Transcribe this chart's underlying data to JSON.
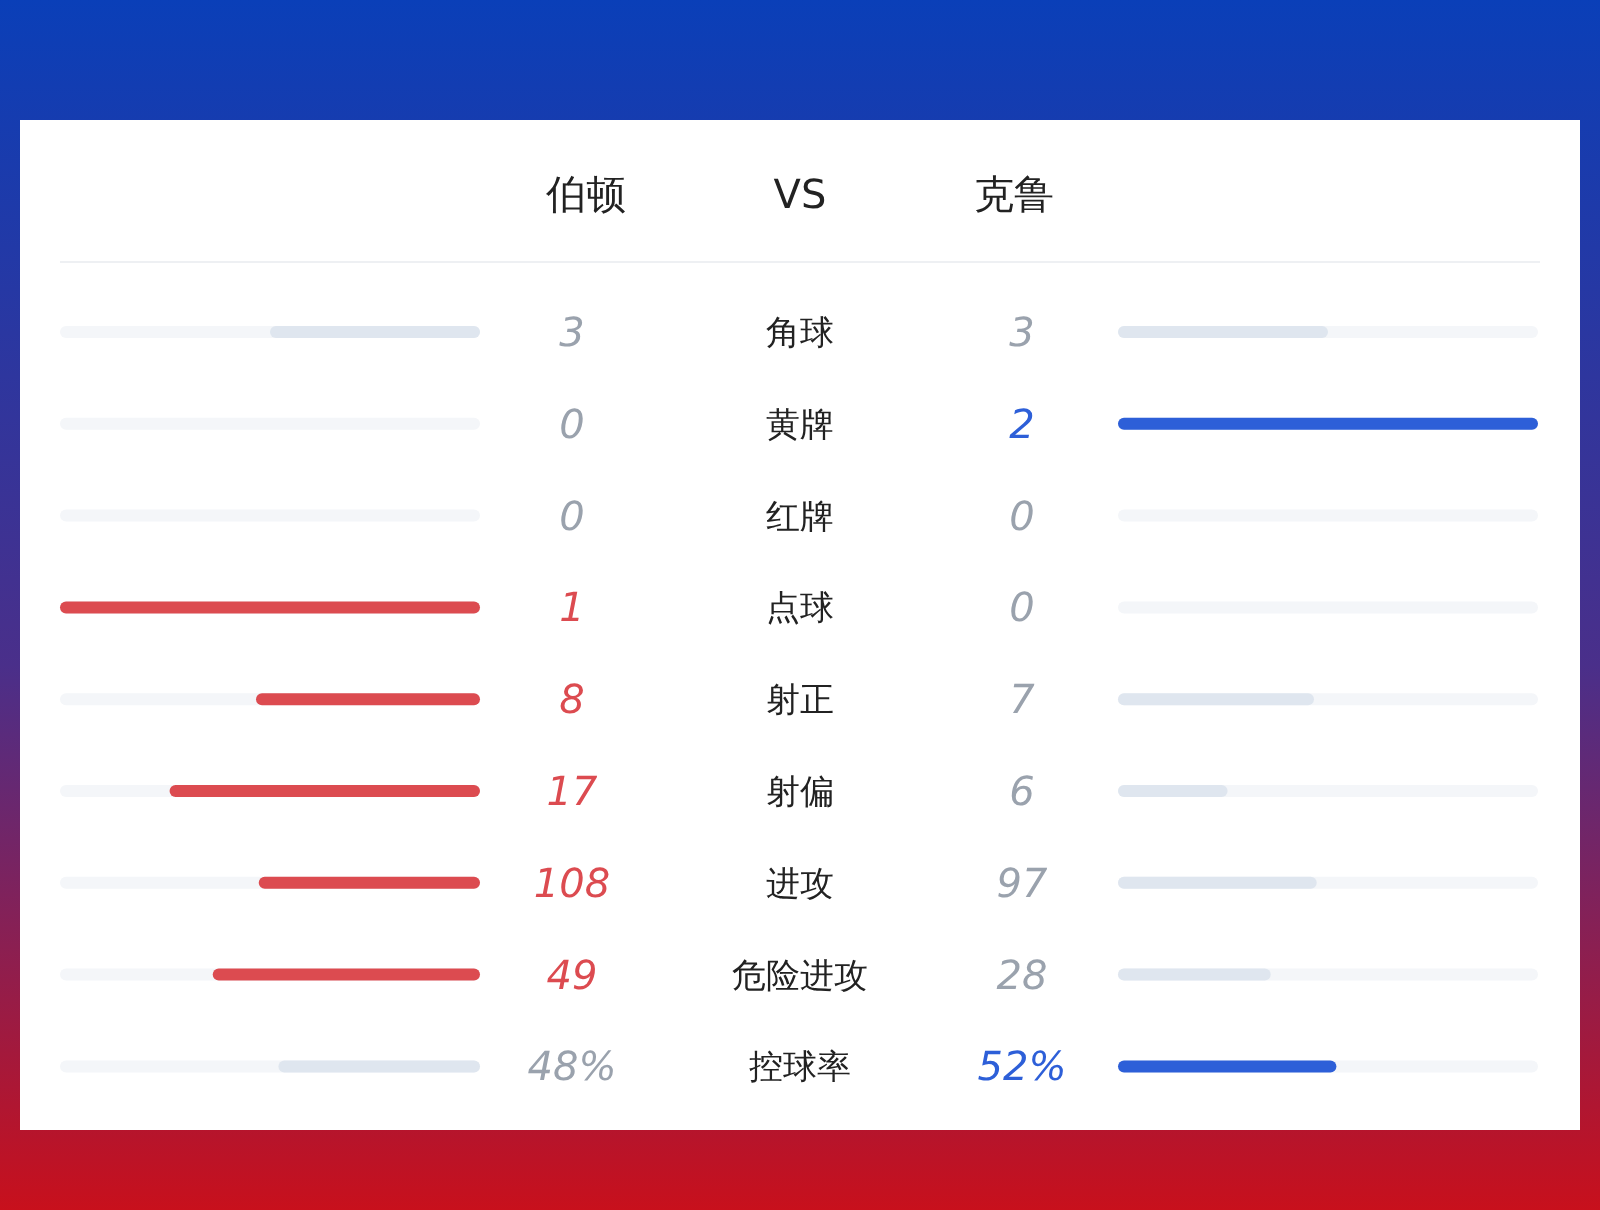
{
  "chart_data": {
    "type": "other",
    "data_labels": true,
    "annotations": [
      "VS"
    ],
    "categories": [
      "角球",
      "黄牌",
      "红牌",
      "点球",
      "射正",
      "射偏",
      "进攻",
      "危险进攻",
      "控球率"
    ],
    "series": [
      {
        "name": "伯顿",
        "values": [
          3,
          0,
          0,
          1,
          8,
          17,
          108,
          49,
          48
        ],
        "value_labels": [
          "3",
          "0",
          "0",
          "1",
          "8",
          "17",
          "108",
          "49",
          "48%"
        ],
        "colors": [
          "#dfe6ef",
          "#dfe6ef",
          "#dfe6ef",
          "#dc4b50",
          "#dc4b50",
          "#dc4b50",
          "#dc4b50",
          "#dc4b50",
          "#dfe6ef"
        ]
      },
      {
        "name": "克鲁",
        "values": [
          3,
          2,
          0,
          0,
          7,
          6,
          97,
          28,
          52
        ],
        "value_labels": [
          "3",
          "2",
          "0",
          "0",
          "7",
          "6",
          "97",
          "28",
          "52%"
        ],
        "colors": [
          "#dfe6ef",
          "#2d5fd8",
          "#dfe6ef",
          "#dfe6ef",
          "#dfe6ef",
          "#dfe6ef",
          "#dfe6ef",
          "#dfe6ef",
          "#2d5fd8"
        ]
      }
    ]
  }
}
